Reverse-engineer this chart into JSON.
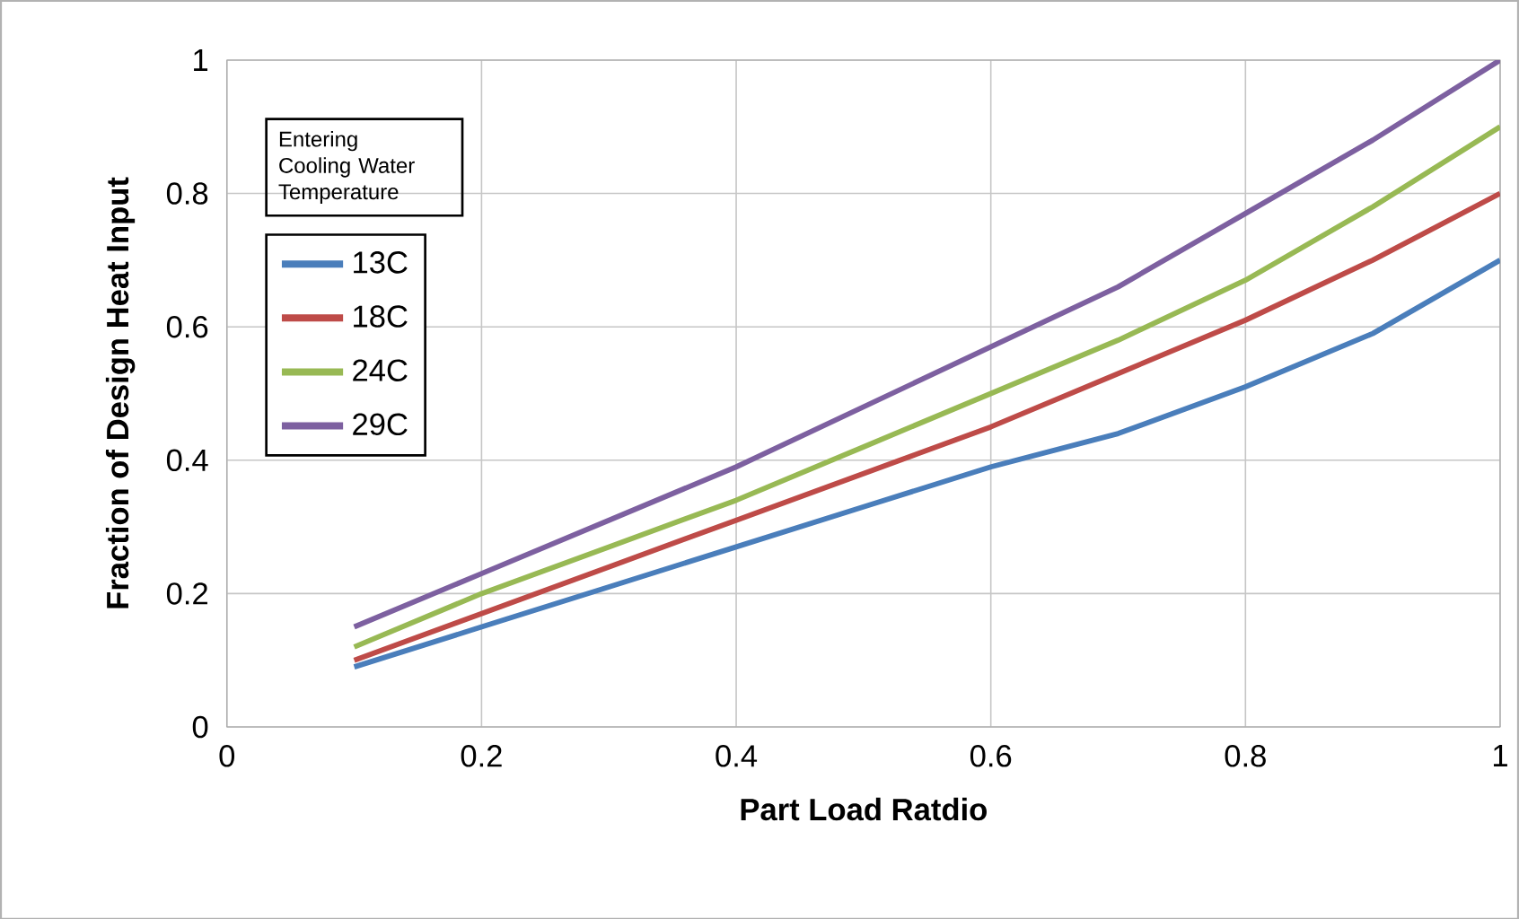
{
  "chart_data": {
    "type": "line",
    "xlabel": "Part Load Ratdio",
    "ylabel": "Fraction of Design Heat Input",
    "legend_title": "Entering Cooling Water Temperature",
    "x": [
      0.1,
      0.2,
      0.3,
      0.4,
      0.5,
      0.6,
      0.7,
      0.8,
      0.9,
      1.0
    ],
    "series": [
      {
        "name": "13C",
        "color": "#4a7ebb",
        "values": [
          0.09,
          0.15,
          0.21,
          0.27,
          0.33,
          0.39,
          0.44,
          0.51,
          0.59,
          0.7
        ]
      },
      {
        "name": "18C",
        "color": "#be4b48",
        "values": [
          0.1,
          0.17,
          0.24,
          0.31,
          0.38,
          0.45,
          0.53,
          0.61,
          0.7,
          0.8
        ]
      },
      {
        "name": "24C",
        "color": "#98b954",
        "values": [
          0.12,
          0.2,
          0.27,
          0.34,
          0.42,
          0.5,
          0.58,
          0.67,
          0.78,
          0.9
        ]
      },
      {
        "name": "29C",
        "color": "#7d60a0",
        "values": [
          0.15,
          0.23,
          0.31,
          0.39,
          0.48,
          0.57,
          0.66,
          0.77,
          0.88,
          1.0
        ]
      }
    ],
    "xlim": [
      0,
      1
    ],
    "ylim": [
      0,
      1
    ],
    "xticks": [
      0,
      0.2,
      0.4,
      0.6,
      0.8,
      1
    ],
    "yticks": [
      0,
      0.2,
      0.4,
      0.6,
      0.8,
      1
    ],
    "grid": true,
    "legend": "top left",
    "marker": "none",
    "line_style": "solid"
  }
}
